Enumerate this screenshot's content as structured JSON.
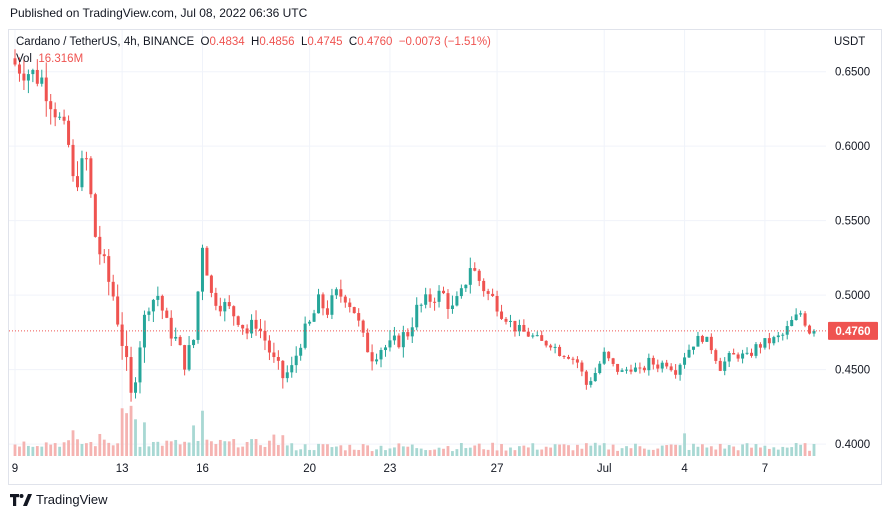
{
  "header": {
    "published": "Published on TradingView.com, Jul 08, 2022 06:36 UTC"
  },
  "legend": {
    "symbol": "Cardano / TetherUS, 4h, BINANCE",
    "open_label": "O",
    "open": "0.4834",
    "high_label": "H",
    "high": "0.4856",
    "low_label": "L",
    "low": "0.4745",
    "close_label": "C",
    "close": "0.4760",
    "change": "−0.0073 (−1.51%)",
    "vol_label": "Vol",
    "vol": "16.316M"
  },
  "axis": {
    "currency": "USDT"
  },
  "colors": {
    "up": "#26a69a",
    "down": "#ef5350",
    "vol_up": "#a8d8d3",
    "vol_down": "#f5b3b1",
    "grid": "#f0f3fa"
  },
  "brand": {
    "name": "TradingView"
  },
  "chart_data": {
    "type": "candlestick",
    "symbol": "ADA/USDT",
    "interval": "4h",
    "y_ticks": [
      0.4,
      0.45,
      0.5,
      0.55,
      0.6,
      0.65
    ],
    "y_tick_labels": [
      "0.4000",
      "0.4500",
      "0.5000",
      "0.5500",
      "0.6000",
      "0.6500"
    ],
    "ylim": [
      0.392,
      0.678
    ],
    "x_ticks": [
      {
        "label": "9",
        "index": 0
      },
      {
        "label": "13",
        "index": 24
      },
      {
        "label": "16",
        "index": 42
      },
      {
        "label": "20",
        "index": 66
      },
      {
        "label": "23",
        "index": 84
      },
      {
        "label": "27",
        "index": 108
      },
      {
        "label": "Jul",
        "index": 132
      },
      {
        "label": "4",
        "index": 150
      },
      {
        "label": "7",
        "index": 168
      }
    ],
    "last_price": 0.476,
    "last_price_label": "0.4760",
    "anchors": [
      [
        0,
        0.655
      ],
      [
        3,
        0.65
      ],
      [
        6,
        0.645
      ],
      [
        9,
        0.625
      ],
      [
        12,
        0.6
      ],
      [
        13,
        0.575
      ],
      [
        16,
        0.59
      ],
      [
        18,
        0.54
      ],
      [
        20,
        0.518
      ],
      [
        22,
        0.5
      ],
      [
        24,
        0.47
      ],
      [
        26,
        0.43
      ],
      [
        28,
        0.47
      ],
      [
        30,
        0.495
      ],
      [
        32,
        0.5
      ],
      [
        34,
        0.48
      ],
      [
        36,
        0.47
      ],
      [
        38,
        0.455
      ],
      [
        40,
        0.47
      ],
      [
        42,
        0.535
      ],
      [
        44,
        0.5
      ],
      [
        46,
        0.495
      ],
      [
        48,
        0.49
      ],
      [
        50,
        0.485
      ],
      [
        52,
        0.475
      ],
      [
        54,
        0.482
      ],
      [
        56,
        0.47
      ],
      [
        58,
        0.455
      ],
      [
        60,
        0.445
      ],
      [
        62,
        0.45
      ],
      [
        64,
        0.47
      ],
      [
        66,
        0.48
      ],
      [
        68,
        0.495
      ],
      [
        70,
        0.49
      ],
      [
        72,
        0.5
      ],
      [
        74,
        0.5
      ],
      [
        76,
        0.49
      ],
      [
        78,
        0.47
      ],
      [
        80,
        0.46
      ],
      [
        82,
        0.465
      ],
      [
        84,
        0.465
      ],
      [
        86,
        0.47
      ],
      [
        88,
        0.475
      ],
      [
        90,
        0.49
      ],
      [
        92,
        0.495
      ],
      [
        94,
        0.5
      ],
      [
        96,
        0.5
      ],
      [
        98,
        0.49
      ],
      [
        100,
        0.5
      ],
      [
        102,
        0.52
      ],
      [
        104,
        0.51
      ],
      [
        106,
        0.5
      ],
      [
        108,
        0.495
      ],
      [
        110,
        0.485
      ],
      [
        112,
        0.478
      ],
      [
        114,
        0.475
      ],
      [
        116,
        0.472
      ],
      [
        118,
        0.468
      ],
      [
        120,
        0.468
      ],
      [
        122,
        0.462
      ],
      [
        124,
        0.46
      ],
      [
        126,
        0.455
      ],
      [
        128,
        0.44
      ],
      [
        130,
        0.448
      ],
      [
        132,
        0.46
      ],
      [
        134,
        0.452
      ],
      [
        136,
        0.448
      ],
      [
        138,
        0.452
      ],
      [
        140,
        0.448
      ],
      [
        142,
        0.455
      ],
      [
        144,
        0.453
      ],
      [
        146,
        0.455
      ],
      [
        148,
        0.45
      ],
      [
        150,
        0.46
      ],
      [
        152,
        0.468
      ],
      [
        154,
        0.472
      ],
      [
        156,
        0.465
      ],
      [
        158,
        0.452
      ],
      [
        160,
        0.458
      ],
      [
        162,
        0.46
      ],
      [
        164,
        0.458
      ],
      [
        166,
        0.465
      ],
      [
        168,
        0.468
      ],
      [
        170,
        0.47
      ],
      [
        172,
        0.473
      ],
      [
        174,
        0.482
      ],
      [
        176,
        0.488
      ],
      [
        178,
        0.476
      ]
    ],
    "volume_axis_max": 85,
    "volume_spikes": [
      {
        "index": 24,
        "value": 78
      },
      {
        "index": 25,
        "value": 70
      },
      {
        "index": 26,
        "value": 82
      },
      {
        "index": 27,
        "value": 60
      },
      {
        "index": 29,
        "value": 55
      },
      {
        "index": 42,
        "value": 74
      },
      {
        "index": 40,
        "value": 50
      },
      {
        "index": 58,
        "value": 35
      },
      {
        "index": 60,
        "value": 34
      },
      {
        "index": 13,
        "value": 42
      },
      {
        "index": 19,
        "value": 36
      },
      {
        "index": 150,
        "value": 37
      }
    ]
  }
}
